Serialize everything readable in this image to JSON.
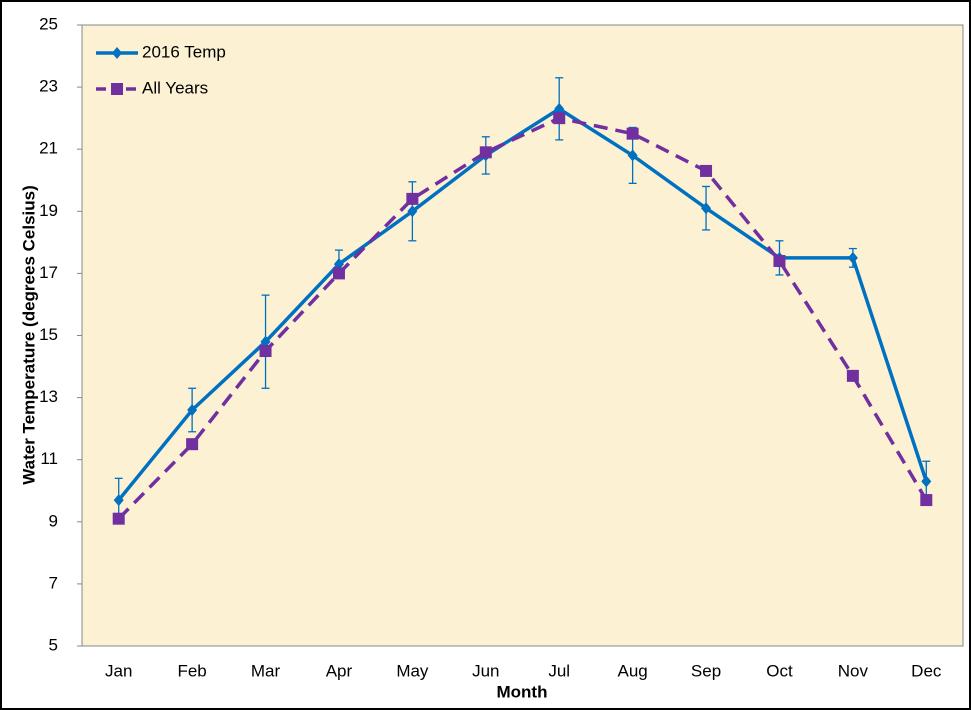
{
  "chart_data": {
    "type": "line",
    "x_label": "Month",
    "y_label": "Water Temperature (degrees Celsius)",
    "categories": [
      "Jan",
      "Feb",
      "Mar",
      "Apr",
      "May",
      "Jun",
      "Jul",
      "Aug",
      "Sep",
      "Oct",
      "Nov",
      "Dec"
    ],
    "series": [
      {
        "name": "2016 Temp",
        "color": "#0070c0",
        "marker": "diamond",
        "dash": false,
        "values": [
          9.7,
          12.6,
          14.8,
          17.3,
          19.0,
          20.8,
          22.3,
          20.8,
          19.1,
          17.5,
          17.5,
          10.3
        ],
        "errors": [
          0.7,
          0.7,
          1.5,
          0.45,
          0.95,
          0.6,
          1.0,
          0.9,
          0.7,
          0.55,
          0.3,
          0.65
        ]
      },
      {
        "name": "All Years",
        "color": "#7030a0",
        "marker": "square",
        "dash": true,
        "values": [
          9.1,
          11.5,
          14.5,
          17.0,
          19.4,
          20.9,
          22.0,
          21.5,
          20.3,
          17.4,
          13.7,
          9.7
        ]
      }
    ],
    "ylim": [
      5,
      25
    ],
    "yticks": [
      5,
      7,
      9,
      11,
      13,
      15,
      17,
      19,
      21,
      23,
      25
    ],
    "grid": false,
    "legend": "upper left"
  }
}
